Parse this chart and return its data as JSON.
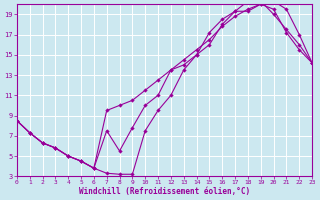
{
  "xlabel": "Windchill (Refroidissement éolien,°C)",
  "bg_color": "#cce8f0",
  "grid_color": "#ffffff",
  "line_color": "#990099",
  "xlim": [
    0,
    23
  ],
  "ylim": [
    3,
    20
  ],
  "xticks": [
    0,
    1,
    2,
    3,
    4,
    5,
    6,
    7,
    8,
    9,
    10,
    11,
    12,
    13,
    14,
    15,
    16,
    17,
    18,
    19,
    20,
    21,
    22,
    23
  ],
  "yticks": [
    3,
    5,
    7,
    9,
    11,
    13,
    15,
    17,
    19
  ],
  "line1_x": [
    0,
    1,
    2,
    3,
    4,
    5,
    6,
    7,
    8,
    9,
    10,
    11,
    12,
    13,
    14,
    15,
    16,
    17,
    18,
    19,
    20,
    21,
    22,
    23
  ],
  "line1_y": [
    8.5,
    7.3,
    6.3,
    5.8,
    5.0,
    4.5,
    3.8,
    3.3,
    3.2,
    3.2,
    7.5,
    9.5,
    11.0,
    13.5,
    15.0,
    17.2,
    18.5,
    19.3,
    19.3,
    20.0,
    19.5,
    17.2,
    15.5,
    14.2
  ],
  "line2_x": [
    0,
    1,
    2,
    3,
    4,
    5,
    6,
    7,
    8,
    9,
    10,
    11,
    12,
    13,
    14,
    15,
    16,
    17,
    18,
    19,
    20,
    21,
    22,
    23
  ],
  "line2_y": [
    8.5,
    7.3,
    6.3,
    5.8,
    5.0,
    4.5,
    3.8,
    7.5,
    5.5,
    7.8,
    10.0,
    11.0,
    13.5,
    14.0,
    15.0,
    16.0,
    18.0,
    19.3,
    20.3,
    20.3,
    19.0,
    17.5,
    16.0,
    14.2
  ],
  "line3_x": [
    0,
    1,
    2,
    3,
    4,
    5,
    6,
    7,
    8,
    9,
    10,
    11,
    12,
    13,
    14,
    15,
    16,
    17,
    18,
    19,
    20,
    21,
    22,
    23
  ],
  "line3_y": [
    8.5,
    7.3,
    6.3,
    5.8,
    5.0,
    4.5,
    3.8,
    9.5,
    10.0,
    10.5,
    11.5,
    12.5,
    13.5,
    14.5,
    15.5,
    16.5,
    17.8,
    18.8,
    19.5,
    20.0,
    20.3,
    19.5,
    17.0,
    14.2
  ]
}
